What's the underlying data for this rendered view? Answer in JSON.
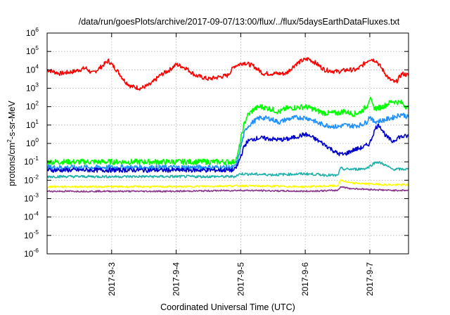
{
  "chart_data": {
    "type": "line",
    "title": "/data/run/goesPlots/archive/2017-09-07/13:00/flux/../flux/5daysEarthDataFluxes.txt",
    "xlabel": "Coordinated Universal Time (UTC)",
    "ylabel": "protons/cm²-s-sr-MeV",
    "ylabel_parts": {
      "a": "protons/cm",
      "sup": "2",
      "b": "-s-sr-MeV"
    },
    "y_scale": "log",
    "y_exponent_range": [
      -6,
      6
    ],
    "y_tick_labels": [
      {
        "exp": -6,
        "base": "10",
        "sup": "-6"
      },
      {
        "exp": -5,
        "base": "10",
        "sup": "-5"
      },
      {
        "exp": -4,
        "base": "10",
        "sup": "-4"
      },
      {
        "exp": -3,
        "base": "10",
        "sup": "-3"
      },
      {
        "exp": -2,
        "base": "10",
        "sup": "-2"
      },
      {
        "exp": -1,
        "base": "10",
        "sup": "-1"
      },
      {
        "exp": 0,
        "base": "10",
        "sup": "0"
      },
      {
        "exp": 1,
        "base": "10",
        "sup": "1"
      },
      {
        "exp": 2,
        "base": "10",
        "sup": "2"
      },
      {
        "exp": 3,
        "base": "10",
        "sup": "3"
      },
      {
        "exp": 4,
        "base": "10",
        "sup": "4"
      },
      {
        "exp": 5,
        "base": "10",
        "sup": "5"
      },
      {
        "exp": 6,
        "base": "10",
        "sup": "6"
      }
    ],
    "x_range_days": [
      2.0,
      7.6
    ],
    "x_ticks": [
      {
        "day": 3,
        "label": "2017-9-3"
      },
      {
        "day": 4,
        "label": "2017-9-4"
      },
      {
        "day": 5,
        "label": "2017-9-5"
      },
      {
        "day": 6,
        "label": "2017-9-6"
      },
      {
        "day": 7,
        "label": "2017-9-7"
      }
    ],
    "grid": true,
    "legend": "none",
    "series": [
      {
        "color": "#ff0000",
        "jitter": 0.12,
        "x": [
          2.0,
          2.2,
          2.4,
          2.6,
          2.7,
          2.85,
          2.95,
          3.1,
          3.2,
          3.3,
          3.45,
          3.6,
          3.75,
          3.9,
          4.0,
          4.15,
          4.3,
          4.5,
          4.65,
          4.8,
          4.9,
          5.05,
          5.2,
          5.35,
          5.5,
          5.7,
          5.85,
          5.95,
          6.05,
          6.15,
          6.3,
          6.5,
          6.65,
          6.8,
          6.9,
          7.0,
          7.1,
          7.2,
          7.3,
          7.4,
          7.5,
          7.6
        ],
        "y": [
          4.0,
          3.8,
          3.9,
          4.1,
          3.8,
          4.2,
          4.5,
          3.9,
          3.4,
          3.1,
          3.0,
          3.2,
          3.7,
          4.0,
          4.3,
          4.1,
          3.7,
          3.5,
          3.6,
          3.7,
          4.2,
          4.4,
          4.2,
          3.8,
          3.8,
          3.8,
          4.3,
          4.5,
          4.6,
          4.4,
          4.0,
          3.9,
          4.0,
          4.0,
          4.3,
          4.6,
          4.5,
          4.0,
          3.5,
          3.3,
          3.8,
          3.7
        ]
      },
      {
        "color": "#00ff00",
        "jitter": 0.15,
        "x": [
          2.0,
          3.0,
          4.0,
          4.9,
          4.95,
          5.0,
          5.05,
          5.1,
          5.2,
          5.3,
          5.45,
          5.6,
          5.7,
          5.85,
          6.0,
          6.1,
          6.2,
          6.3,
          6.5,
          6.6,
          6.75,
          6.85,
          6.95,
          7.0,
          7.05,
          7.1,
          7.2,
          7.35,
          7.5,
          7.6
        ],
        "y": [
          -1.0,
          -1.0,
          -1.0,
          -1.0,
          -0.7,
          0.2,
          1.0,
          1.5,
          1.85,
          2.0,
          1.9,
          1.7,
          1.9,
          1.95,
          2.0,
          1.9,
          1.75,
          1.65,
          1.65,
          1.75,
          1.6,
          1.7,
          2.0,
          2.5,
          2.0,
          1.9,
          2.0,
          2.3,
          2.2,
          1.9
        ]
      },
      {
        "color": "#1e90ff",
        "jitter": 0.13,
        "x": [
          2.0,
          3.0,
          4.0,
          4.9,
          4.95,
          5.0,
          5.05,
          5.1,
          5.2,
          5.3,
          5.45,
          5.6,
          5.7,
          5.85,
          6.0,
          6.1,
          6.2,
          6.3,
          6.5,
          6.6,
          6.75,
          6.85,
          6.95,
          7.0,
          7.05,
          7.1,
          7.2,
          7.35,
          7.5,
          7.6
        ],
        "y": [
          -1.3,
          -1.3,
          -1.3,
          -1.3,
          -1.0,
          -0.2,
          0.5,
          0.9,
          1.2,
          1.4,
          1.35,
          1.15,
          1.3,
          1.4,
          1.4,
          1.3,
          1.1,
          1.0,
          0.9,
          1.0,
          0.95,
          1.0,
          1.15,
          1.5,
          1.2,
          1.2,
          1.25,
          1.4,
          1.6,
          1.4
        ]
      },
      {
        "color": "#0000cd",
        "jitter": 0.12,
        "x": [
          2.0,
          3.0,
          4.0,
          4.9,
          4.95,
          5.0,
          5.05,
          5.1,
          5.2,
          5.3,
          5.45,
          5.6,
          5.75,
          5.9,
          6.0,
          6.1,
          6.25,
          6.4,
          6.5,
          6.6,
          6.75,
          6.9,
          7.0,
          7.05,
          7.1,
          7.15,
          7.25,
          7.35,
          7.45,
          7.6
        ],
        "y": [
          -1.45,
          -1.45,
          -1.45,
          -1.45,
          -1.2,
          -0.7,
          -0.2,
          0.1,
          0.25,
          0.3,
          0.25,
          0.2,
          0.25,
          0.4,
          0.5,
          0.35,
          0.05,
          -0.3,
          -0.55,
          -0.6,
          -0.35,
          -0.2,
          0.0,
          0.5,
          0.9,
          1.0,
          0.4,
          0.1,
          0.35,
          0.4
        ]
      },
      {
        "color": "#20b2aa",
        "jitter": 0.07,
        "x": [
          2.0,
          3.0,
          4.0,
          4.9,
          5.0,
          5.5,
          6.0,
          6.5,
          6.55,
          6.6,
          6.8,
          6.95,
          7.1,
          7.2,
          7.35,
          7.6
        ],
        "y": [
          -1.8,
          -1.8,
          -1.8,
          -1.8,
          -1.65,
          -1.7,
          -1.65,
          -1.75,
          -1.35,
          -1.4,
          -1.4,
          -1.35,
          -1.0,
          -1.1,
          -1.4,
          -1.4
        ]
      },
      {
        "color": "#ffff00",
        "jitter": 0.05,
        "x": [
          2.0,
          3.0,
          4.0,
          5.0,
          6.0,
          6.5,
          6.55,
          6.7,
          7.0,
          7.3,
          7.6
        ],
        "y": [
          -2.35,
          -2.35,
          -2.35,
          -2.3,
          -2.35,
          -2.3,
          -2.0,
          -2.15,
          -2.2,
          -2.25,
          -2.25
        ]
      },
      {
        "color": "#8b3a8b",
        "jitter": 0.04,
        "x": [
          2.0,
          3.0,
          4.0,
          5.0,
          6.0,
          6.5,
          6.55,
          6.7,
          7.0,
          7.3,
          7.6
        ],
        "y": [
          -2.6,
          -2.6,
          -2.6,
          -2.55,
          -2.6,
          -2.55,
          -2.35,
          -2.45,
          -2.5,
          -2.55,
          -2.55
        ]
      }
    ]
  }
}
